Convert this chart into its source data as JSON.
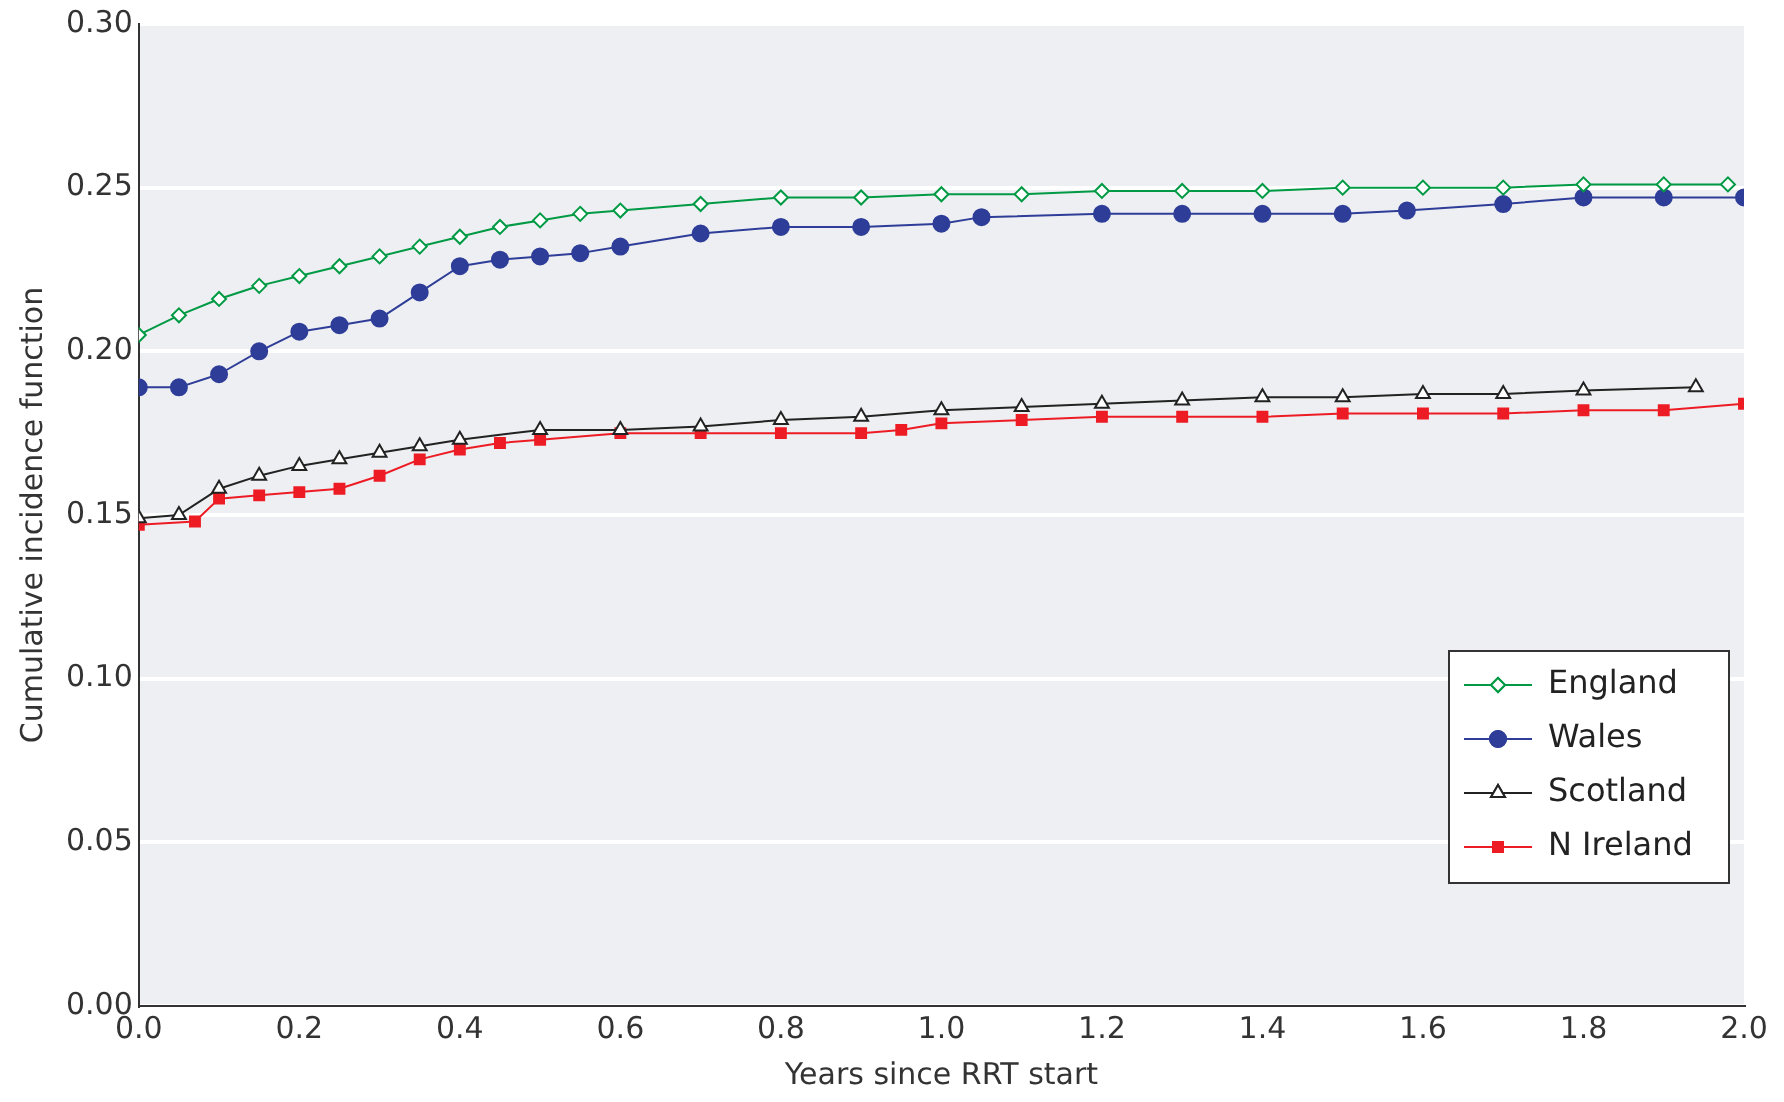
{
  "chart_data": {
    "type": "line",
    "xlabel": "Years since RRT start",
    "ylabel": "Cumulative incidence function",
    "xlim": [
      0,
      2
    ],
    "ylim": [
      0,
      0.3
    ],
    "xticks": [
      {
        "value": 0,
        "label": "0.0"
      },
      {
        "value": 0.2,
        "label": "0.2"
      },
      {
        "value": 0.4,
        "label": "0.4"
      },
      {
        "value": 0.6,
        "label": "0.6"
      },
      {
        "value": 0.8,
        "label": "0.8"
      },
      {
        "value": 1,
        "label": "1.0"
      },
      {
        "value": 1.2,
        "label": "1.2"
      },
      {
        "value": 1.4,
        "label": "1.4"
      },
      {
        "value": 1.6,
        "label": "1.6"
      },
      {
        "value": 1.8,
        "label": "1.8"
      },
      {
        "value": 2,
        "label": "2.0"
      }
    ],
    "yticks": [
      {
        "value": 0,
        "label": "0.00"
      },
      {
        "value": 0.05,
        "label": "0.05"
      },
      {
        "value": 0.1,
        "label": "0.10"
      },
      {
        "value": 0.15,
        "label": "0.15"
      },
      {
        "value": 0.2,
        "label": "0.20"
      },
      {
        "value": 0.25,
        "label": "0.25"
      },
      {
        "value": 0.3,
        "label": "0.30"
      }
    ],
    "grid": "y",
    "legend": "bottom right",
    "series": [
      {
        "name": "England",
        "color": "#009a44",
        "marker": "diamond",
        "x": [
          0,
          0.05,
          0.1,
          0.15,
          0.2,
          0.25,
          0.3,
          0.35,
          0.4,
          0.45,
          0.5,
          0.55,
          0.6,
          0.7,
          0.8,
          0.9,
          1.0,
          1.1,
          1.2,
          1.3,
          1.4,
          1.5,
          1.6,
          1.7,
          1.8,
          1.9,
          1.98
        ],
        "values": [
          0.205,
          0.211,
          0.216,
          0.22,
          0.223,
          0.226,
          0.229,
          0.232,
          0.235,
          0.238,
          0.24,
          0.242,
          0.243,
          0.245,
          0.247,
          0.247,
          0.248,
          0.248,
          0.249,
          0.249,
          0.249,
          0.25,
          0.25,
          0.25,
          0.251,
          0.251,
          0.251
        ]
      },
      {
        "name": "Wales",
        "color": "#2e3d98",
        "marker": "circle",
        "x": [
          0,
          0.05,
          0.1,
          0.15,
          0.2,
          0.25,
          0.3,
          0.35,
          0.4,
          0.45,
          0.5,
          0.55,
          0.6,
          0.7,
          0.8,
          0.9,
          1.0,
          1.05,
          1.2,
          1.3,
          1.4,
          1.5,
          1.58,
          1.7,
          1.8,
          1.9,
          2.0
        ],
        "values": [
          0.189,
          0.189,
          0.193,
          0.2,
          0.206,
          0.208,
          0.21,
          0.218,
          0.226,
          0.228,
          0.229,
          0.23,
          0.232,
          0.236,
          0.238,
          0.238,
          0.239,
          0.241,
          0.242,
          0.242,
          0.242,
          0.242,
          0.243,
          0.245,
          0.247,
          0.247,
          0.247
        ]
      },
      {
        "name": "Scotland",
        "color": "#222222",
        "marker": "triangle",
        "x": [
          0,
          0.05,
          0.1,
          0.15,
          0.2,
          0.25,
          0.3,
          0.35,
          0.4,
          0.5,
          0.6,
          0.7,
          0.8,
          0.9,
          1.0,
          1.1,
          1.2,
          1.3,
          1.4,
          1.5,
          1.6,
          1.7,
          1.8,
          1.94
        ],
        "values": [
          0.149,
          0.15,
          0.158,
          0.162,
          0.165,
          0.167,
          0.169,
          0.171,
          0.173,
          0.176,
          0.176,
          0.177,
          0.179,
          0.18,
          0.182,
          0.183,
          0.184,
          0.185,
          0.186,
          0.186,
          0.187,
          0.187,
          0.188,
          0.189
        ]
      },
      {
        "name": "N Ireland",
        "color": "#ed1c24",
        "marker": "square",
        "x": [
          0,
          0.07,
          0.1,
          0.15,
          0.2,
          0.25,
          0.3,
          0.35,
          0.4,
          0.45,
          0.5,
          0.6,
          0.7,
          0.8,
          0.9,
          0.95,
          1.0,
          1.1,
          1.2,
          1.3,
          1.4,
          1.5,
          1.6,
          1.7,
          1.8,
          1.9,
          2.0
        ],
        "values": [
          0.147,
          0.148,
          0.155,
          0.156,
          0.157,
          0.158,
          0.162,
          0.167,
          0.17,
          0.172,
          0.173,
          0.175,
          0.175,
          0.175,
          0.175,
          0.176,
          0.178,
          0.179,
          0.18,
          0.18,
          0.18,
          0.181,
          0.181,
          0.181,
          0.182,
          0.182,
          0.184
        ]
      }
    ]
  }
}
